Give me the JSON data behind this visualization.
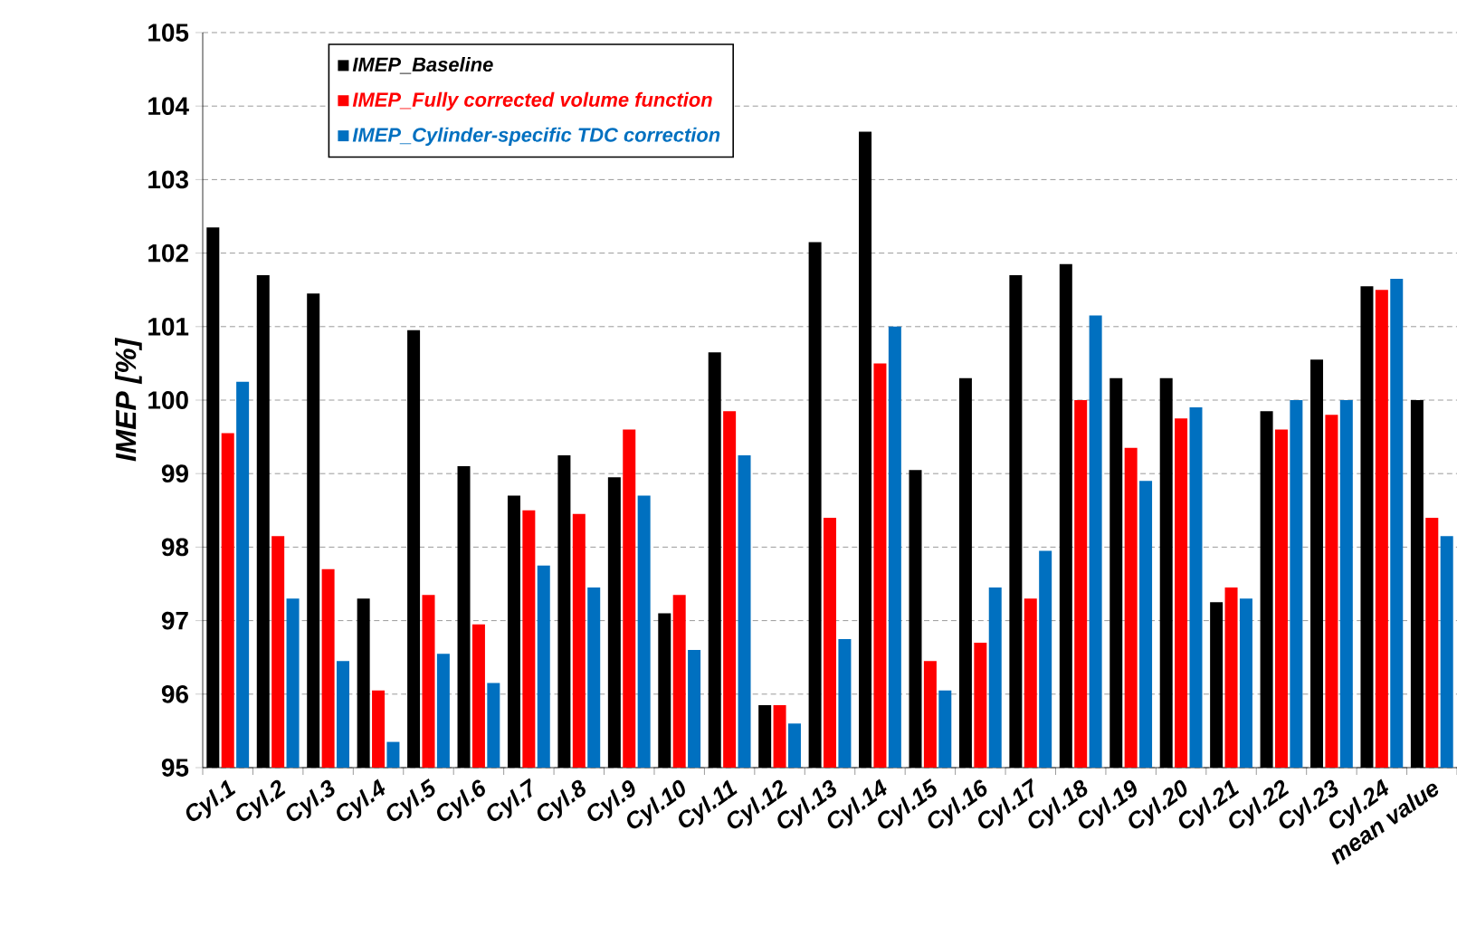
{
  "chart_data": {
    "type": "bar",
    "ylabel": "IMEP [%]",
    "categories": [
      "Cyl.1",
      "Cyl.2",
      "Cyl.3",
      "Cyl.4",
      "Cyl.5",
      "Cyl.6",
      "Cyl.7",
      "Cyl.8",
      "Cyl.9",
      "Cyl.10",
      "Cyl.11",
      "Cyl.12",
      "Cyl.13",
      "Cyl.14",
      "Cyl.15",
      "Cyl.16",
      "Cyl.17",
      "Cyl.18",
      "Cyl.19",
      "Cyl.20",
      "Cyl.21",
      "Cyl.22",
      "Cyl.23",
      "Cyl.24",
      "mean value"
    ],
    "series": [
      {
        "name": "IMEP_Baseline",
        "color": "#000000",
        "values": [
          102.35,
          101.7,
          101.45,
          97.3,
          100.95,
          99.1,
          98.7,
          99.25,
          98.95,
          97.1,
          100.65,
          95.85,
          102.15,
          103.65,
          99.05,
          100.3,
          101.7,
          101.85,
          100.3,
          100.3,
          97.25,
          99.85,
          100.55,
          101.55,
          100.0
        ]
      },
      {
        "name": "IMEP_Fully corrected volume function",
        "color": "#ff0000",
        "values": [
          99.55,
          98.15,
          97.7,
          96.05,
          97.35,
          96.95,
          98.5,
          98.45,
          99.6,
          97.35,
          99.85,
          95.85,
          98.4,
          100.5,
          96.45,
          96.7,
          97.3,
          100.0,
          99.35,
          99.75,
          97.45,
          99.6,
          99.8,
          101.5,
          98.4
        ]
      },
      {
        "name": "IMEP_Cylinder-specific TDC correction",
        "color": "#0070c0",
        "values": [
          100.25,
          97.3,
          96.45,
          95.35,
          96.55,
          96.15,
          97.75,
          97.45,
          98.7,
          96.6,
          99.25,
          95.6,
          96.75,
          101.0,
          96.05,
          97.45,
          97.95,
          101.15,
          98.9,
          99.9,
          97.3,
          100.0,
          100.0,
          101.65,
          98.15
        ]
      }
    ],
    "ylim": [
      95,
      105
    ],
    "yticks": [
      95,
      96,
      97,
      98,
      99,
      100,
      101,
      102,
      103,
      104,
      105
    ],
    "grid": "y",
    "legend": "top left"
  }
}
